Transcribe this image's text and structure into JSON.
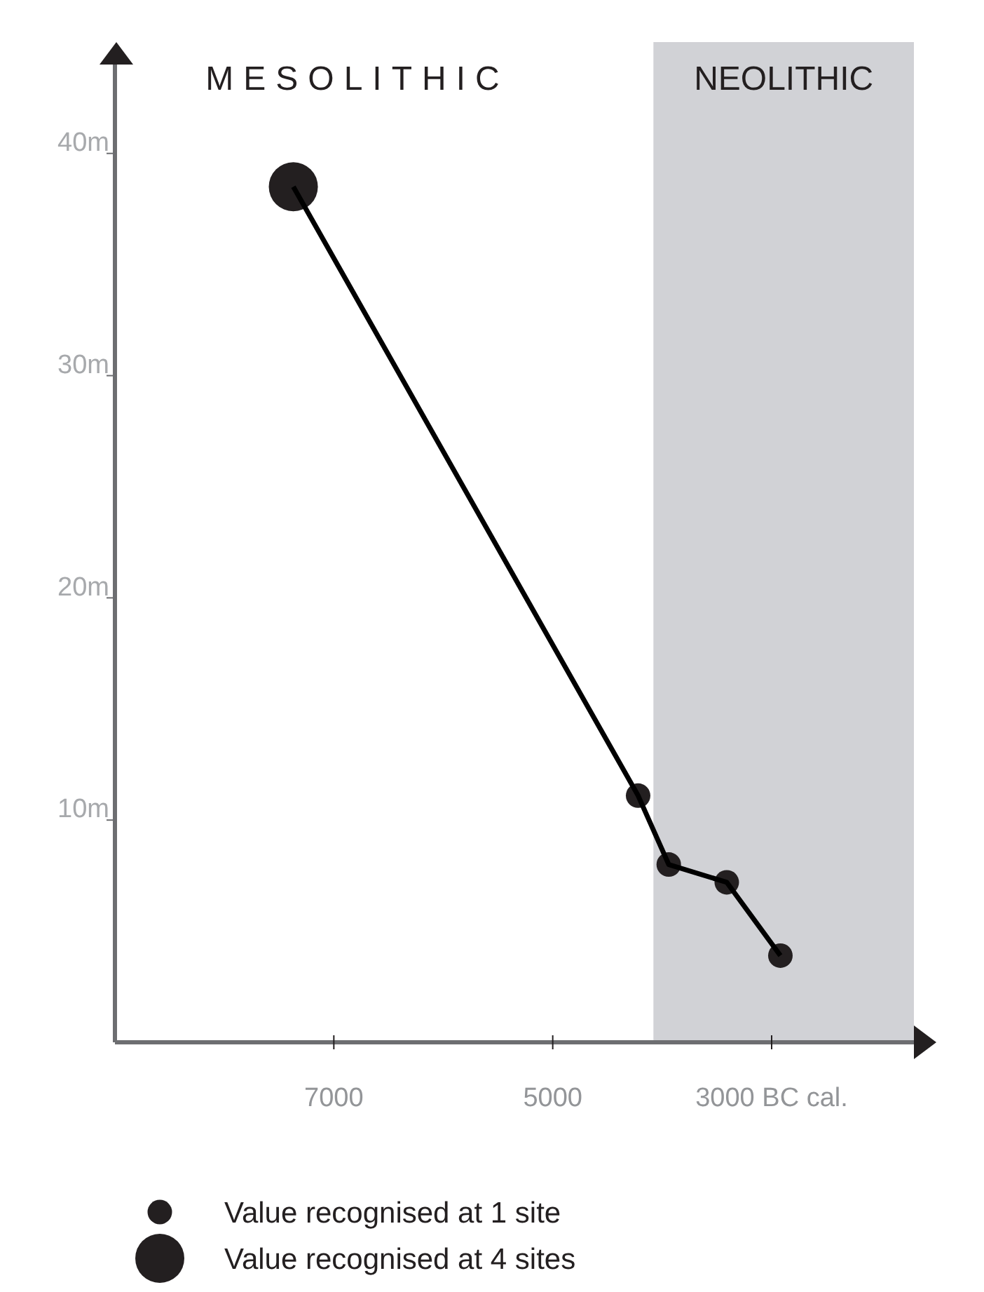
{
  "chart_data": {
    "type": "line",
    "xlim": [
      9000,
      1700
    ],
    "ylim": [
      0,
      44
    ],
    "xticks": [
      7000,
      5000,
      {
        "value": 3000,
        "label": "3000 BC cal."
      }
    ],
    "yticks": [
      {
        "value": 10,
        "label": "10m"
      },
      {
        "value": 20,
        "label": "20m"
      },
      {
        "value": 30,
        "label": "30m"
      },
      {
        "value": 40,
        "label": "40m"
      }
    ],
    "series": [
      {
        "type": "scatter",
        "name": "Value recognised at 1 site",
        "color": "#231f20",
        "x": [
          4220,
          3940,
          3410,
          2920
        ],
        "values": [
          11.1,
          8.0,
          7.2,
          3.9
        ],
        "sizes": [
          0.25,
          0.25,
          0.25,
          0.25
        ]
      },
      {
        "type": "scatter",
        "name": "Value recognised at 4 sites",
        "color": "#231f20",
        "x": [
          7370
        ],
        "values": [
          38.5
        ],
        "sizes": [
          1
        ]
      },
      {
        "marker": "none",
        "color": "#000000",
        "x": [
          7370,
          4220,
          3940,
          3410,
          2920
        ],
        "values": [
          38.5,
          11.1,
          8.0,
          7.2,
          3.9
        ]
      }
    ],
    "marker": "circle",
    "line_style": "solid",
    "legend": "bottom left",
    "bands": [
      {
        "axis": "x",
        "from": 4080,
        "to": 1700,
        "label": "NEOLITHIC",
        "color": "#d1d2d6"
      }
    ],
    "annotations": [
      "MESOLITHIC"
    ]
  }
}
